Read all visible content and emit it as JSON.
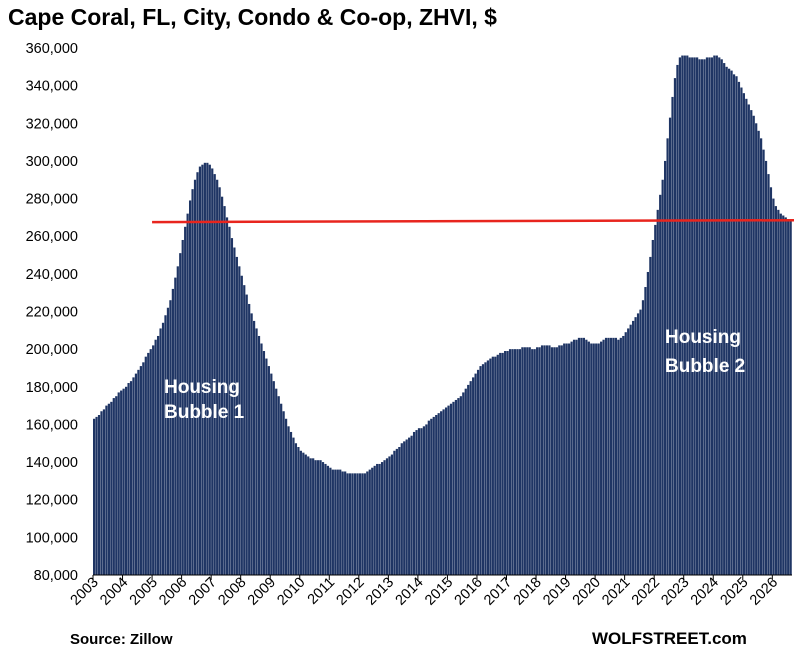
{
  "chart_data": {
    "type": "bar",
    "title": "Cape Coral, FL, City, Condo & Co-op, ZHVI, $",
    "xlabel": "",
    "ylabel": "",
    "ylim": [
      80000,
      360000
    ],
    "y_ticks": [
      80000,
      100000,
      120000,
      140000,
      160000,
      180000,
      200000,
      220000,
      240000,
      260000,
      280000,
      300000,
      320000,
      340000,
      360000
    ],
    "y_tick_labels": [
      "80,000",
      "100,000",
      "120,000",
      "140,000",
      "160,000",
      "180,000",
      "200,000",
      "220,000",
      "240,000",
      "260,000",
      "280,000",
      "300,000",
      "320,000",
      "340,000",
      "360,000"
    ],
    "x_tick_labels": [
      "2003",
      "2004",
      "2005",
      "2006",
      "2007",
      "2008",
      "2009",
      "2010",
      "2011",
      "2012",
      "2013",
      "2014",
      "2015",
      "2016",
      "2017",
      "2018",
      "2019",
      "2020",
      "2021",
      "2022",
      "2023",
      "2024",
      "2025",
      "2026"
    ],
    "series": [
      {
        "values": [
          163000,
          164000,
          165000,
          167000,
          168000,
          170000,
          171000,
          172000,
          174000,
          175000,
          177000,
          178000,
          179000,
          180000,
          182000,
          183000,
          185000,
          187000,
          189000,
          191000,
          193000,
          196000,
          198000,
          200000,
          202000,
          205000,
          207000,
          211000,
          214000,
          218000,
          222000,
          226000,
          232000,
          238000,
          244000,
          251000,
          258000,
          265000,
          272000,
          279000,
          285000,
          290000,
          294000,
          297000,
          298000,
          299000,
          299000,
          298000,
          296000,
          293000,
          290000,
          286000,
          281000,
          276000,
          270000,
          265000,
          259000,
          254000,
          249000,
          244000,
          239000,
          234000,
          229000,
          224000,
          219000,
          215000,
          211000,
          207000,
          203000,
          199000,
          195000,
          191000,
          187000,
          183000,
          179000,
          175000,
          171000,
          167000,
          163000,
          159000,
          156000,
          153000,
          150000,
          148000,
          146000,
          145000,
          144000,
          143000,
          142000,
          142000,
          141000,
          141000,
          141000,
          140000,
          139000,
          138000,
          137000,
          136000,
          136000,
          136000,
          136000,
          135000,
          135000,
          134000,
          134000,
          134000,
          134000,
          134000,
          134000,
          134000,
          134000,
          135000,
          136000,
          137000,
          138000,
          139000,
          139000,
          140000,
          141000,
          142000,
          143000,
          144000,
          146000,
          147000,
          148000,
          150000,
          151000,
          152000,
          153000,
          154000,
          156000,
          157000,
          158000,
          158000,
          159000,
          160000,
          162000,
          163000,
          164000,
          165000,
          166000,
          167000,
          168000,
          169000,
          170000,
          171000,
          172000,
          173000,
          174000,
          175000,
          177000,
          179000,
          181000,
          183000,
          185000,
          187000,
          189000,
          191000,
          192000,
          193000,
          194000,
          195000,
          196000,
          196000,
          197000,
          198000,
          198000,
          199000,
          199000,
          200000,
          200000,
          200000,
          200000,
          200000,
          201000,
          201000,
          201000,
          201000,
          200000,
          200000,
          201000,
          201000,
          202000,
          202000,
          202000,
          202000,
          201000,
          201000,
          201000,
          202000,
          202000,
          203000,
          203000,
          203000,
          204000,
          205000,
          205000,
          206000,
          206000,
          206000,
          205000,
          204000,
          203000,
          203000,
          203000,
          203000,
          204000,
          205000,
          206000,
          206000,
          206000,
          206000,
          206000,
          205000,
          206000,
          207000,
          209000,
          211000,
          213000,
          215000,
          217000,
          219000,
          221000,
          226000,
          233000,
          241000,
          249000,
          258000,
          266000,
          274000,
          282000,
          290000,
          300000,
          312000,
          323000,
          334000,
          344000,
          351000,
          355000,
          356000,
          356000,
          356000,
          355000,
          355000,
          355000,
          355000,
          354000,
          354000,
          354000,
          355000,
          355000,
          355000,
          356000,
          356000,
          355000,
          354000,
          352000,
          350000,
          349000,
          348000,
          346000,
          345000,
          342000,
          339000,
          336000,
          333000,
          330000,
          327000,
          324000,
          320000,
          316000,
          312000,
          306000,
          300000,
          293000,
          286000,
          280000,
          276000,
          274000,
          272000,
          271000,
          270000,
          269000,
          268000
        ]
      }
    ],
    "reference_line": {
      "from": 267500,
      "to": 268500,
      "color": "#e8251e"
    },
    "annotations": [
      {
        "text_lines": [
          "Housing",
          "Bubble 1"
        ]
      },
      {
        "text_lines": [
          "Housing",
          "Bubble 2"
        ]
      }
    ],
    "bar_color": "#1f3564",
    "grid": false,
    "legend": "none"
  },
  "footer": {
    "source": "Source: Zillow",
    "brand": "WOLFSTREET.com"
  }
}
